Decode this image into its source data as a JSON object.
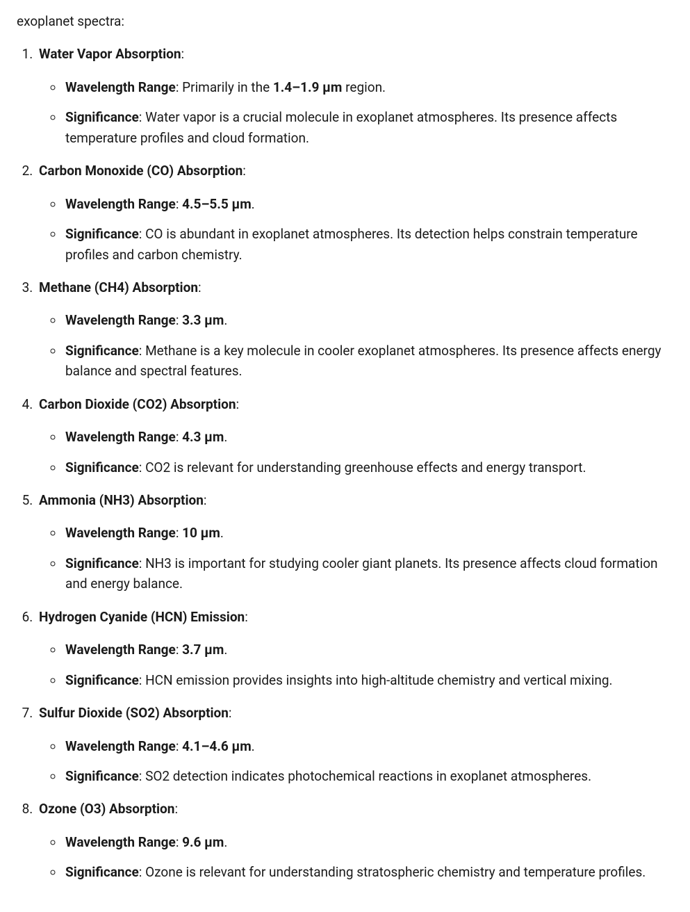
{
  "intro": "exoplanet spectra:",
  "labels": {
    "wavelength": "Wavelength Range",
    "significance": "Significance"
  },
  "items": [
    {
      "title": "Water Vapor Absorption",
      "wavelength_prefix": "Primarily in the ",
      "wavelength_range_bold": "1.4–1.9 μm",
      "wavelength_suffix": " region.",
      "significance": "Water vapor is a crucial molecule in exoplanet atmospheres. Its presence affects temperature profiles and cloud formation."
    },
    {
      "title": "Carbon Monoxide (CO) Absorption",
      "wavelength_prefix": "",
      "wavelength_range_bold": "4.5–5.5 μm",
      "wavelength_suffix": ".",
      "significance": "CO is abundant in exoplanet atmospheres. Its detection helps constrain temperature profiles and carbon chemistry."
    },
    {
      "title": "Methane (CH4) Absorption",
      "wavelength_prefix": "",
      "wavelength_range_bold": "3.3 μm",
      "wavelength_suffix": ".",
      "significance": "Methane is a key molecule in cooler exoplanet atmospheres. Its presence affects energy balance and spectral features."
    },
    {
      "title": "Carbon Dioxide (CO2) Absorption",
      "wavelength_prefix": "",
      "wavelength_range_bold": "4.3 μm",
      "wavelength_suffix": ".",
      "significance": "CO2 is relevant for understanding greenhouse effects and energy transport."
    },
    {
      "title": "Ammonia (NH3) Absorption",
      "wavelength_prefix": "",
      "wavelength_range_bold": "10 μm",
      "wavelength_suffix": ".",
      "significance": "NH3 is important for studying cooler giant planets. Its presence affects cloud formation and energy balance."
    },
    {
      "title": "Hydrogen Cyanide (HCN) Emission",
      "wavelength_prefix": "",
      "wavelength_range_bold": "3.7 μm",
      "wavelength_suffix": ".",
      "significance": "HCN emission provides insights into high-altitude chemistry and vertical mixing."
    },
    {
      "title": "Sulfur Dioxide (SO2) Absorption",
      "wavelength_prefix": "",
      "wavelength_range_bold": "4.1–4.6 μm",
      "wavelength_suffix": ".",
      "significance": "SO2 detection indicates photochemical reactions in exoplanet atmospheres."
    },
    {
      "title": "Ozone (O3) Absorption",
      "wavelength_prefix": "",
      "wavelength_range_bold": "9.6 μm",
      "wavelength_suffix": ".",
      "significance": "Ozone is relevant for understanding stratospheric chemistry and temperature profiles."
    }
  ]
}
